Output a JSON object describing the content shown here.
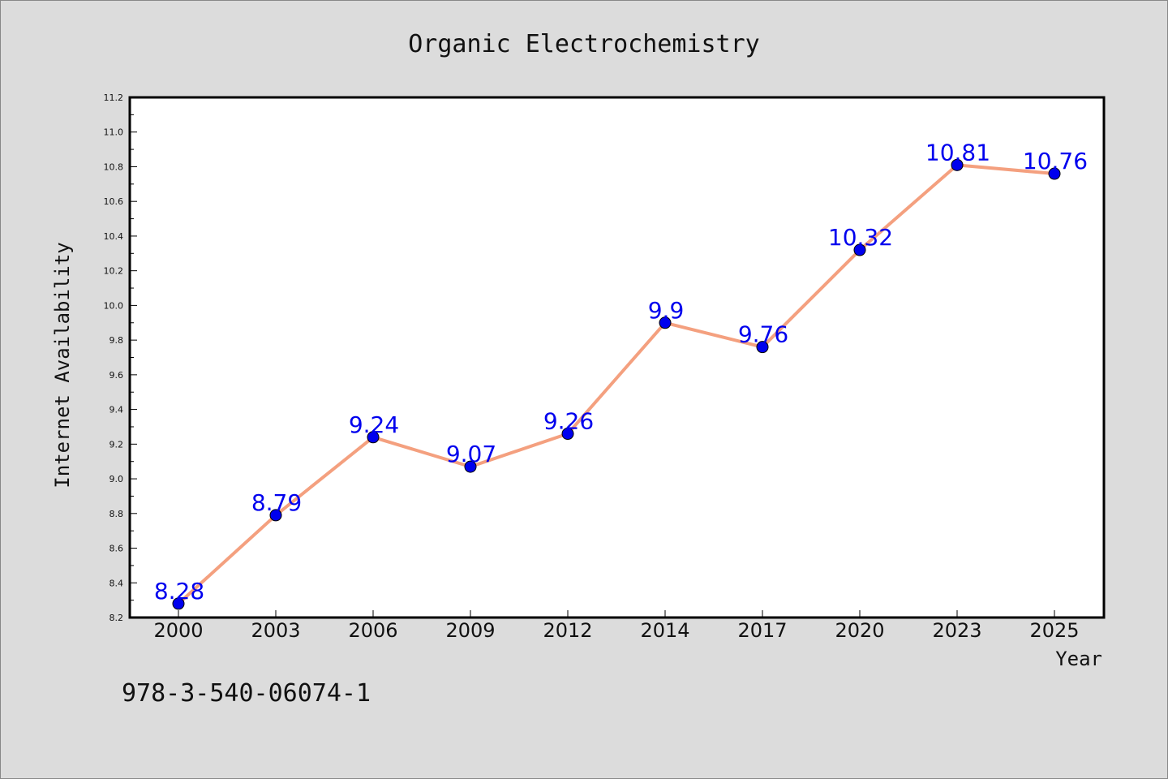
{
  "chart_data": {
    "type": "line",
    "title": "Organic Electrochemistry",
    "xlabel": "Year",
    "ylabel": "Internet Availability",
    "categories": [
      "2000",
      "2003",
      "2006",
      "2009",
      "2012",
      "2014",
      "2017",
      "2020",
      "2023",
      "2025"
    ],
    "values": [
      8.28,
      8.79,
      9.24,
      9.07,
      9.26,
      9.9,
      9.76,
      10.32,
      10.81,
      10.76
    ],
    "data_labels": [
      "8.28",
      "8.79",
      "9.24",
      "9.07",
      "9.26",
      "9.9",
      "9.76",
      "10.32",
      "10.81",
      "10.76"
    ],
    "ylim": [
      8.2,
      11.2
    ],
    "yticks": [
      "8.2",
      "8.4",
      "8.6",
      "8.8",
      "9.0",
      "9.2",
      "9.4",
      "9.6",
      "9.8",
      "10.0",
      "10.2",
      "10.4",
      "10.6",
      "10.8",
      "11.0",
      "11.2"
    ],
    "grid": false,
    "legend": "none",
    "colors": {
      "line": "#f4a07f",
      "marker": "#0000ee",
      "label": "#0000ee",
      "background": "#dcdcdc",
      "plot_area": "#ffffff"
    }
  },
  "footnote": "978-3-540-06074-1"
}
